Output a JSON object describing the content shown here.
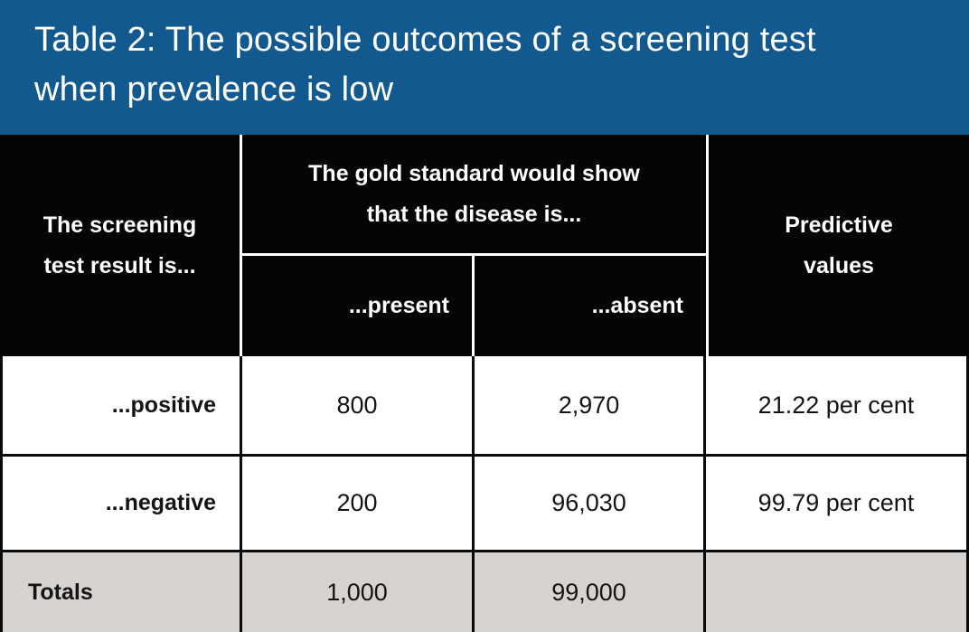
{
  "title": {
    "full": "Table 2: The possible outcomes of a screening test when prevalence is low",
    "line1": "Table 2: The possible outcomes of a screening test",
    "line2": "when prevalence is low"
  },
  "header": {
    "screening_full": "The screening test result is...",
    "screening_line1": "The screening",
    "screening_line2": "test result is...",
    "gold_full": "The gold standard would show that the disease is...",
    "gold_line1": "The gold standard would show",
    "gold_line2": "that the disease is...",
    "present": "...present",
    "absent": "...absent",
    "predictive_full": "Predictive values",
    "predictive_line1": "Predictive",
    "predictive_line2": "values"
  },
  "rows": [
    {
      "label": "...positive",
      "present": "800",
      "absent": "2,970",
      "predictive": "21.22 per cent"
    },
    {
      "label": "...negative",
      "present": "200",
      "absent": "96,030",
      "predictive": "99.79 per cent"
    },
    {
      "label": "Totals",
      "present": "1,000",
      "absent": "99,000",
      "predictive": ""
    }
  ],
  "colors": {
    "banner_blue": "#11598e",
    "header_black": "#050505",
    "totals_gray": "#d7d3d1",
    "border_black": "#0a0a0a",
    "header_text": "#ffffff",
    "body_text": "#141414"
  },
  "chart_data": {
    "type": "table",
    "title": "Table 2: The possible outcomes of a screening test when prevalence is low",
    "group_header": {
      "label": "The gold standard would show that the disease is...",
      "spans": [
        "...present",
        "...absent"
      ]
    },
    "columns": [
      "The screening test result is...",
      "...present",
      "...absent",
      "Predictive values"
    ],
    "rows": [
      [
        "...positive",
        800,
        2970,
        "21.22 per cent"
      ],
      [
        "...negative",
        200,
        96030,
        "99.79 per cent"
      ],
      [
        "Totals",
        1000,
        99000,
        ""
      ]
    ]
  }
}
